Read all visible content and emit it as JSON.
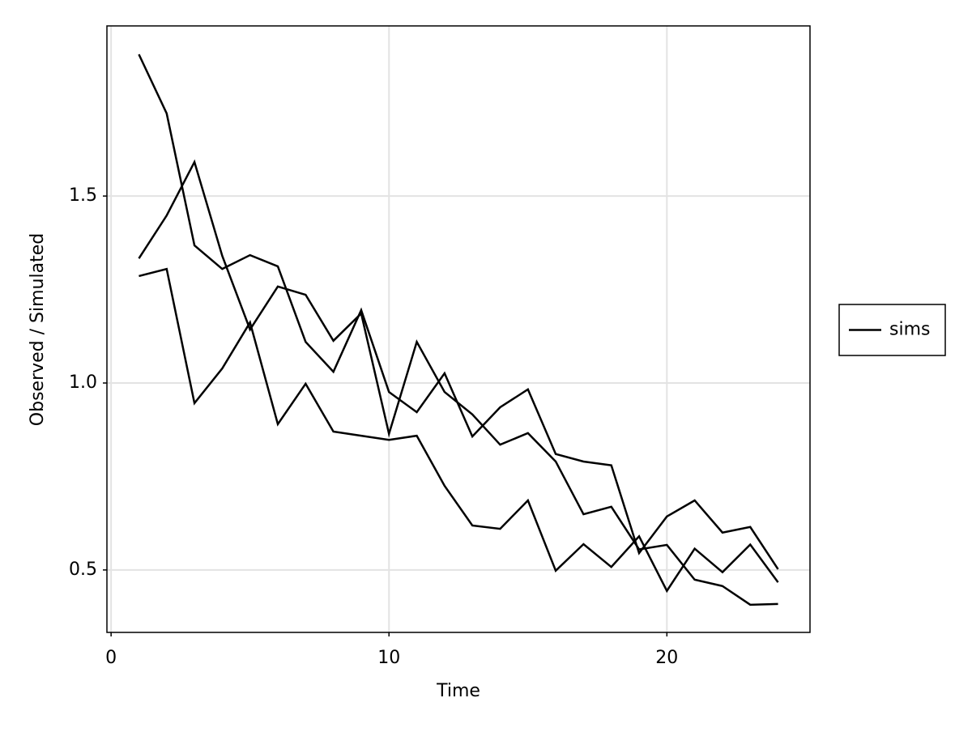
{
  "chart_data": {
    "type": "line",
    "x_label": "Time",
    "y_label": "Observed / Simulated",
    "x": [
      1,
      2,
      3,
      4,
      5,
      6,
      7,
      8,
      9,
      10,
      11,
      12,
      13,
      14,
      15,
      16,
      17,
      18,
      19,
      20,
      21,
      22,
      23,
      24
    ],
    "series": [
      {
        "name": "sims",
        "color": "#000000",
        "values": [
          1.879,
          1.721,
          1.368,
          1.305,
          1.342,
          1.312,
          1.11,
          1.03,
          1.195,
          0.976,
          0.922,
          1.026,
          0.857,
          0.935,
          0.983,
          0.81,
          0.79,
          0.78,
          0.545,
          0.643,
          0.686,
          0.6,
          0.615,
          0.502
        ]
      },
      {
        "color": "#000000",
        "values": [
          1.333,
          1.448,
          1.591,
          1.34,
          1.143,
          1.258,
          1.236,
          1.113,
          1.186,
          0.864,
          1.11,
          0.976,
          0.916,
          0.835,
          0.866,
          0.79,
          0.649,
          0.669,
          0.555,
          0.567,
          0.474,
          0.457,
          0.407,
          0.409
        ]
      },
      {
        "color": "#000000",
        "values": [
          1.286,
          1.305,
          0.946,
          1.039,
          1.162,
          0.89,
          0.998,
          0.87,
          0.859,
          0.848,
          0.859,
          0.725,
          0.619,
          0.61,
          0.686,
          0.498,
          0.569,
          0.508,
          0.59,
          0.444,
          0.557,
          0.494,
          0.568,
          0.467
        ]
      }
    ],
    "xlim": [
      -0.15,
      25.15
    ],
    "ylim": [
      0.333,
      1.955
    ],
    "xticks": [
      0,
      10,
      20
    ],
    "yticks": [
      0.5,
      {
        "value": 1,
        "label": "1.0"
      },
      1.5
    ],
    "grid": true,
    "legend": "right"
  }
}
